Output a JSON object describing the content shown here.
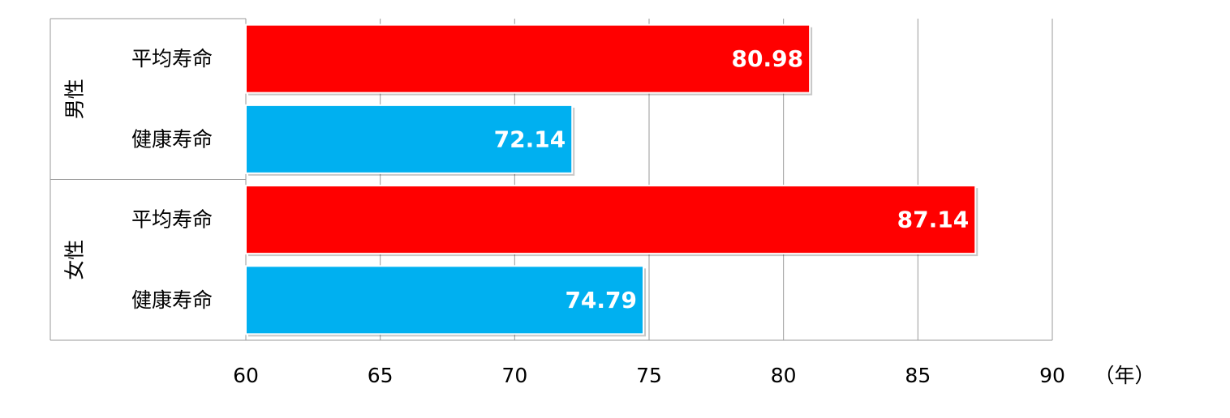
{
  "chart_data": {
    "type": "bar",
    "orientation": "horizontal",
    "groups": [
      {
        "label": "男性",
        "bars": [
          {
            "category": "平均寿命",
            "value": 80.98,
            "color": "#FF0000"
          },
          {
            "category": "健康寿命",
            "value": 72.14,
            "color": "#00B0F0"
          }
        ]
      },
      {
        "label": "女性",
        "bars": [
          {
            "category": "平均寿命",
            "value": 87.14,
            "color": "#FF0000"
          },
          {
            "category": "健康寿命",
            "value": 74.79,
            "color": "#00B0F0"
          }
        ]
      }
    ],
    "xlim": [
      60,
      90
    ],
    "xticks": [
      "60",
      "65",
      "70",
      "75",
      "80",
      "85",
      "90"
    ],
    "xunit": "（年）",
    "grid": true,
    "data_labels": true,
    "legend": "none"
  }
}
